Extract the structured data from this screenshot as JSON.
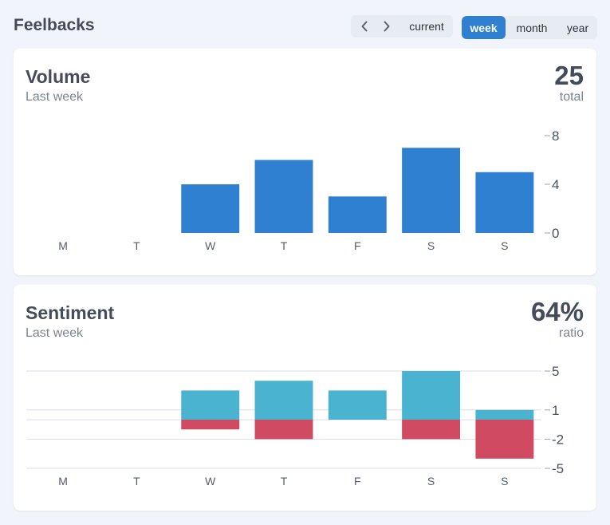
{
  "header": {
    "title": "Feelbacks",
    "nav": {
      "prev_icon": "chevron-left-icon",
      "next_icon": "chevron-right-icon",
      "current_label": "current"
    },
    "ranges": [
      {
        "label": "week",
        "active": true
      },
      {
        "label": "month",
        "active": false
      },
      {
        "label": "year",
        "active": false
      }
    ]
  },
  "colors": {
    "accent": "#2f80d0",
    "positive": "#4ab3cf",
    "negative": "#d04b62",
    "background": "#f1f4fa"
  },
  "volume": {
    "title": "Volume",
    "subtitle": "Last week",
    "stat_value": "25",
    "stat_label": "total"
  },
  "sentiment": {
    "title": "Sentiment",
    "subtitle": "Last week",
    "stat_value": "64%",
    "stat_label": "ratio"
  },
  "chart_data": [
    {
      "type": "bar",
      "categories": [
        "M",
        "T",
        "W",
        "T",
        "F",
        "S",
        "S"
      ],
      "values": [
        0,
        0,
        4,
        6,
        3,
        7,
        5
      ],
      "ylim": [
        0,
        8
      ],
      "yticks": [
        8,
        4,
        0
      ],
      "ytick_labels": [
        "8",
        "4",
        "0"
      ],
      "grid": false,
      "color": "#2f80d0"
    },
    {
      "type": "bar",
      "stacked": true,
      "categories": [
        "M",
        "T",
        "W",
        "T",
        "F",
        "S",
        "S"
      ],
      "series": [
        {
          "values": [
            0,
            0,
            3,
            4,
            3,
            5,
            1
          ],
          "color": "#4ab3cf"
        },
        {
          "values": [
            0,
            0,
            -1,
            -2,
            0,
            -2,
            -4
          ],
          "color": "#d04b62"
        }
      ],
      "ylim": [
        -5,
        5
      ],
      "yticks": [
        5,
        1,
        -2,
        -5
      ],
      "ytick_labels": [
        "5",
        "1",
        "-2",
        "-5"
      ],
      "grid": true
    }
  ]
}
